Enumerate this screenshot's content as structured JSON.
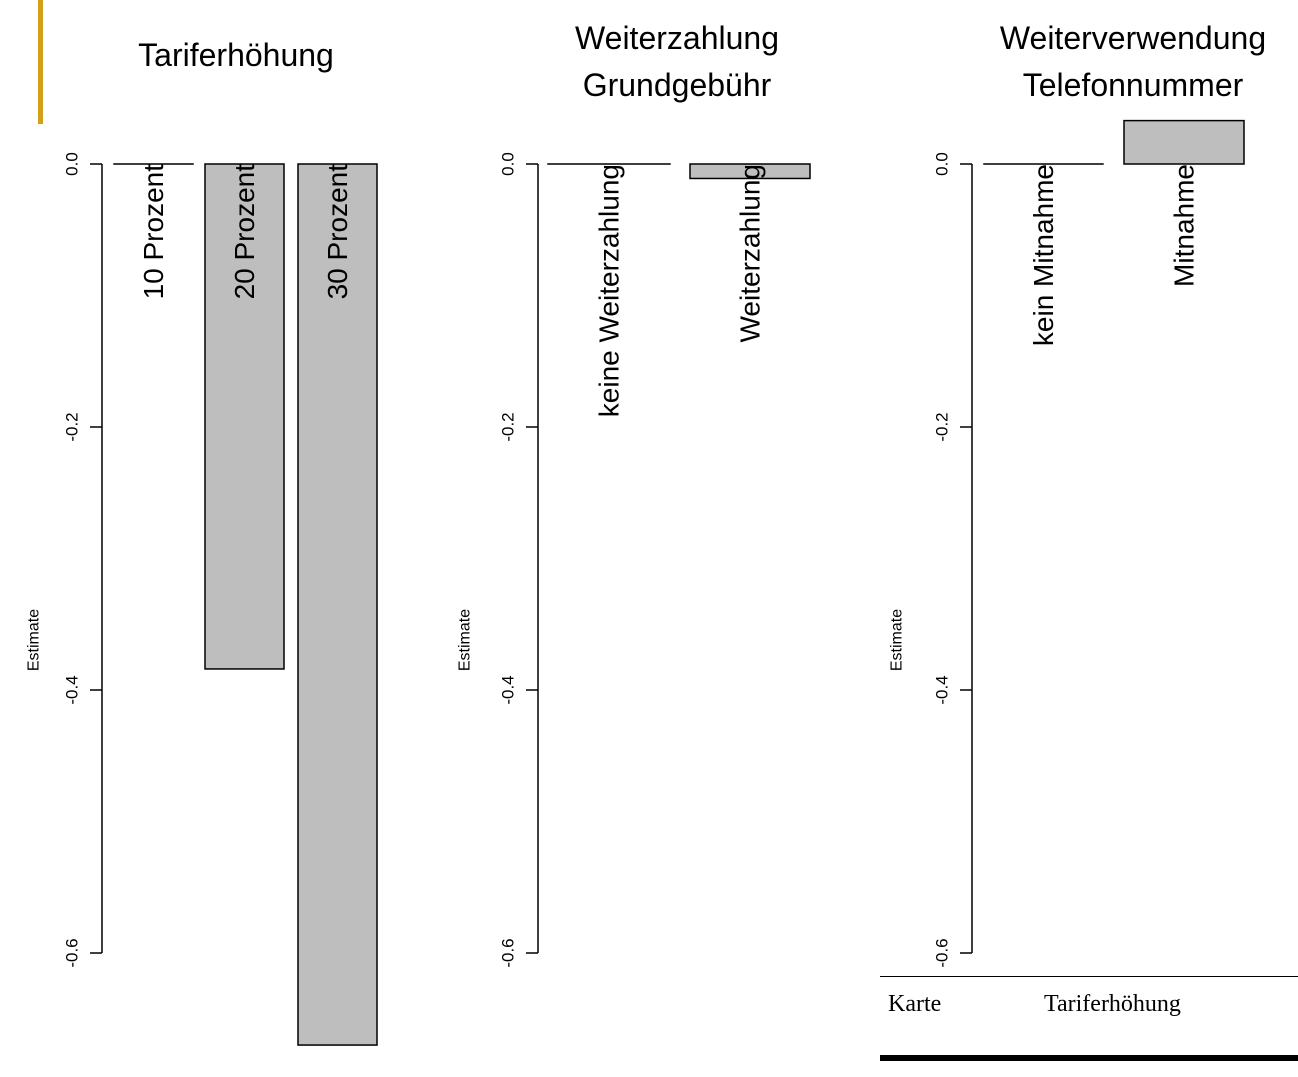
{
  "colors": {
    "accent": "#d4a017",
    "bar_fill": "#bebebe",
    "bar_stroke": "#000000",
    "axis": "#000000"
  },
  "chart_data": [
    {
      "type": "bar",
      "title": "Tariferhöhung",
      "ylabel": "Estimate",
      "ylim": [
        -0.6,
        0.0
      ],
      "yticks": [
        0.0,
        -0.2,
        -0.4,
        -0.6
      ],
      "ytick_labels": [
        "0.0",
        "-0.2",
        "-0.4",
        "-0.6"
      ],
      "categories": [
        "10 Prozent",
        "20 Prozent",
        "30 Prozent"
      ],
      "values": [
        0.0,
        -0.384,
        -0.67
      ]
    },
    {
      "type": "bar",
      "title": "Weiterzahlung\nGrundgebühr",
      "ylabel": "Estimate",
      "ylim": [
        -0.6,
        0.0
      ],
      "yticks": [
        0.0,
        -0.2,
        -0.4,
        -0.6
      ],
      "ytick_labels": [
        "0.0",
        "-0.2",
        "-0.4",
        "-0.6"
      ],
      "categories": [
        "keine Weiterzahlung",
        "Weiterzahlung"
      ],
      "values": [
        0.0,
        -0.011
      ]
    },
    {
      "type": "bar",
      "title": "Weiterverwendung\nTelefonnummer",
      "ylabel": "Estimate",
      "ylim": [
        -0.6,
        0.0
      ],
      "yticks": [
        0.0,
        -0.2,
        -0.4,
        -0.6
      ],
      "ytick_labels": [
        "0.0",
        "-0.2",
        "-0.4",
        "-0.6"
      ],
      "categories": [
        "kein Mitnahme",
        "Mitnahme"
      ],
      "values": [
        0.0,
        0.033
      ]
    }
  ],
  "table_fragment": {
    "col1": "Karte",
    "col2": "Tariferhöhung"
  }
}
